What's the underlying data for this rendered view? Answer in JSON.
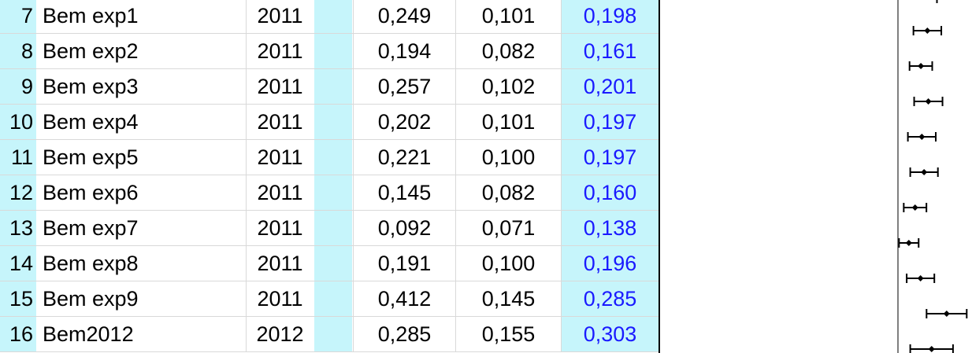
{
  "colors": {
    "row_header_bg": "#c6f5fb",
    "effect_text": "#1a1aff",
    "grid_line": "#d9d9d9"
  },
  "rows": [
    {
      "num": "7",
      "name": "Bem exp1",
      "year": "2011",
      "v1": "0,249",
      "v2": "0,101",
      "v3": "0,198"
    },
    {
      "num": "8",
      "name": "Bem exp2",
      "year": "2011",
      "v1": "0,194",
      "v2": "0,082",
      "v3": "0,161"
    },
    {
      "num": "9",
      "name": "Bem exp3",
      "year": "2011",
      "v1": "0,257",
      "v2": "0,102",
      "v3": "0,201"
    },
    {
      "num": "10",
      "name": "Bem exp4",
      "year": "2011",
      "v1": "0,202",
      "v2": "0,101",
      "v3": "0,197"
    },
    {
      "num": "11",
      "name": "Bem exp5",
      "year": "2011",
      "v1": "0,221",
      "v2": "0,100",
      "v3": "0,197"
    },
    {
      "num": "12",
      "name": "Bem exp6",
      "year": "2011",
      "v1": "0,145",
      "v2": "0,082",
      "v3": "0,160"
    },
    {
      "num": "13",
      "name": "Bem exp7",
      "year": "2011",
      "v1": "0,092",
      "v2": "0,071",
      "v3": "0,138"
    },
    {
      "num": "14",
      "name": "Bem exp8",
      "year": "2011",
      "v1": "0,191",
      "v2": "0,100",
      "v3": "0,196"
    },
    {
      "num": "15",
      "name": "Bem exp9",
      "year": "2011",
      "v1": "0,412",
      "v2": "0,145",
      "v3": "0,285"
    },
    {
      "num": "16",
      "name": "Bem2012",
      "year": "2012",
      "v1": "0,285",
      "v2": "0,155",
      "v3": "0,303"
    }
  ],
  "chart_data": {
    "type": "scatter",
    "x_axis_shown": false,
    "grid": false,
    "series": [
      {
        "points": [
          {
            "row": "7",
            "x": 0.249,
            "x_low": 0.131,
            "x_high": 0.367
          },
          {
            "row": "8",
            "x": 0.194,
            "x_low": 0.098,
            "x_high": 0.29
          },
          {
            "row": "9",
            "x": 0.257,
            "x_low": 0.137,
            "x_high": 0.377
          },
          {
            "row": "10",
            "x": 0.202,
            "x_low": 0.084,
            "x_high": 0.32
          },
          {
            "row": "11",
            "x": 0.221,
            "x_low": 0.104,
            "x_high": 0.338
          },
          {
            "row": "12",
            "x": 0.145,
            "x_low": 0.049,
            "x_high": 0.241
          },
          {
            "row": "13",
            "x": 0.092,
            "x_low": 0.009,
            "x_high": 0.175
          },
          {
            "row": "14",
            "x": 0.191,
            "x_low": 0.074,
            "x_high": 0.308
          },
          {
            "row": "15",
            "x": 0.412,
            "x_low": 0.242,
            "x_high": 0.582
          },
          {
            "row": "16",
            "x": 0.285,
            "x_low": 0.104,
            "x_high": 0.466
          }
        ]
      }
    ]
  }
}
